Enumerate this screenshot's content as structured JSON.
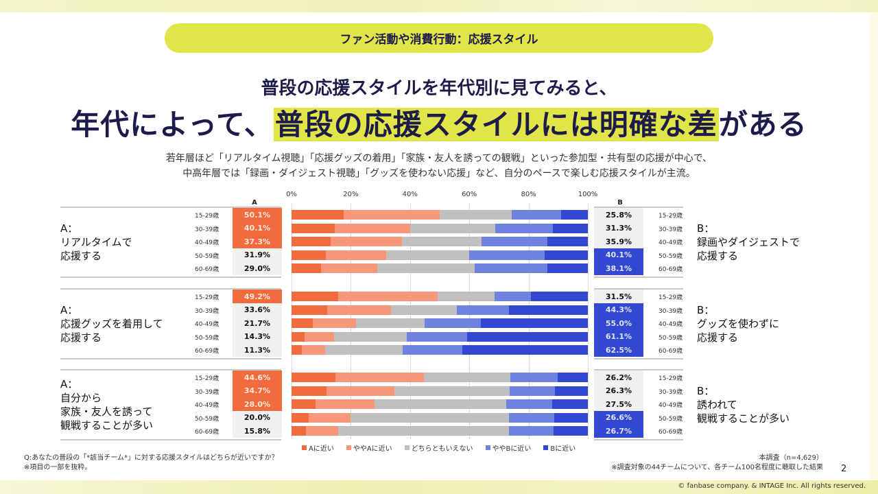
{
  "header": {
    "section_pill": "ファン活動や消費行動：応援スタイル",
    "subheading": "普段の応援スタイルを年代別に見てみると、",
    "heading_pre": "年代によって、",
    "heading_highlight": "普段の応援スタイルには明確な差",
    "heading_post": "がある",
    "description_line1": "若年層ほど「リアルタイム視聴」「応援グッズの着用」「家族・友人を誘っての観戦」といった参加型・共有型の応援が中心で、",
    "description_line2": "中高年層では「録画・ダイジェスト視聴」「グッズを使わない応援」など、自分のペースで楽しむ応援スタイルが主流。"
  },
  "colors": {
    "A_close": "#f26b3f",
    "somewhat_A": "#f7967a",
    "neutral": "#bfbfbf",
    "somewhat_B": "#6f82df",
    "B_close": "#3248d0",
    "highlight_yellow": "#e2e548",
    "heading_navy": "#1d1b4a",
    "cell_grey": "#f0f0f0"
  },
  "chart_data": {
    "type": "bar",
    "orientation": "horizontal-stacked-100",
    "xlim": [
      0,
      100
    ],
    "x_ticks": [
      "0%",
      "20%",
      "40%",
      "60%",
      "80%",
      "100%"
    ],
    "column_headers": {
      "A": "A",
      "B": "B"
    },
    "legend": [
      "Aに近い",
      "ややAに近い",
      "どちらともいえない",
      "ややBに近い",
      "Bに近い"
    ],
    "legend_position": "bottom",
    "age_groups": [
      "15-29歳",
      "30-39歳",
      "40-49歳",
      "50-59歳",
      "60-69歳"
    ],
    "groups": [
      {
        "label_A": [
          "A：",
          "リアルタイムで",
          "応援する"
        ],
        "label_B": [
          "B：",
          "録画やダイジェストで",
          "応援する"
        ],
        "rows": [
          {
            "age": "15-29歳",
            "A_total": "50.1%",
            "B_total": "25.8%",
            "A_hl": true,
            "B_hl": false,
            "segments": [
              17.7,
              32.4,
              24.1,
              16.8,
              9.0
            ]
          },
          {
            "age": "30-39歳",
            "A_total": "40.1%",
            "B_total": "31.3%",
            "A_hl": true,
            "B_hl": false,
            "segments": [
              14.5,
              25.6,
              28.6,
              19.6,
              11.7
            ]
          },
          {
            "age": "40-49歳",
            "A_total": "37.3%",
            "B_total": "35.9%",
            "A_hl": true,
            "B_hl": false,
            "segments": [
              13.1,
              24.2,
              26.8,
              22.2,
              13.7
            ]
          },
          {
            "age": "50-59歳",
            "A_total": "31.9%",
            "B_total": "40.1%",
            "A_hl": false,
            "B_hl": true,
            "segments": [
              11.6,
              20.3,
              28.0,
              25.5,
              14.6
            ]
          },
          {
            "age": "60-69歳",
            "A_total": "29.0%",
            "B_total": "38.1%",
            "A_hl": false,
            "B_hl": true,
            "segments": [
              9.9,
              19.1,
              32.9,
              24.4,
              13.7
            ]
          }
        ]
      },
      {
        "label_A": [
          "A：",
          "応援グッズを着用して",
          "応援する"
        ],
        "label_B": [
          "B：",
          "グッズを使わずに",
          "応援する"
        ],
        "rows": [
          {
            "age": "15-29歳",
            "A_total": "49.2%",
            "B_total": "31.5%",
            "A_hl": true,
            "B_hl": false,
            "segments": [
              15.7,
              33.5,
              19.3,
              12.3,
              19.2
            ]
          },
          {
            "age": "30-39歳",
            "A_total": "33.6%",
            "B_total": "44.3%",
            "A_hl": false,
            "B_hl": true,
            "segments": [
              12.0,
              21.6,
              22.1,
              17.7,
              26.6
            ]
          },
          {
            "age": "40-49歳",
            "A_total": "21.7%",
            "B_total": "55.0%",
            "A_hl": false,
            "B_hl": true,
            "segments": [
              7.1,
              14.6,
              23.3,
              18.8,
              36.2
            ]
          },
          {
            "age": "50-59歳",
            "A_total": "14.3%",
            "B_total": "61.1%",
            "A_hl": false,
            "B_hl": true,
            "segments": [
              4.3,
              10.0,
              24.6,
              20.4,
              40.7
            ]
          },
          {
            "age": "60-69歳",
            "A_total": "11.3%",
            "B_total": "62.5%",
            "A_hl": false,
            "B_hl": true,
            "segments": [
              3.5,
              7.8,
              26.2,
              20.1,
              42.4
            ]
          }
        ]
      },
      {
        "label_A": [
          "A：",
          "自分から",
          "家族・友人を誘って",
          "観戦することが多い"
        ],
        "label_B": [
          "B：",
          "誘われて",
          "観戦することが多い"
        ],
        "rows": [
          {
            "age": "15-29歳",
            "A_total": "44.6%",
            "B_total": "26.2%",
            "A_hl": true,
            "B_hl": false,
            "segments": [
              14.8,
              29.8,
              29.2,
              15.9,
              10.3
            ]
          },
          {
            "age": "30-39歳",
            "A_total": "34.7%",
            "B_total": "26.3%",
            "A_hl": true,
            "B_hl": false,
            "segments": [
              11.8,
              22.9,
              39.0,
              15.2,
              11.1
            ]
          },
          {
            "age": "40-49歳",
            "A_total": "28.0%",
            "B_total": "27.5%",
            "A_hl": true,
            "B_hl": false,
            "segments": [
              8.1,
              19.9,
              44.5,
              15.5,
              12.0
            ]
          },
          {
            "age": "50-59歳",
            "A_total": "20.0%",
            "B_total": "26.6%",
            "A_hl": false,
            "B_hl": true,
            "segments": [
              5.8,
              14.2,
              53.4,
              15.3,
              11.3
            ]
          },
          {
            "age": "60-69歳",
            "A_total": "15.8%",
            "B_total": "26.7%",
            "A_hl": false,
            "B_hl": true,
            "segments": [
              4.9,
              10.9,
              57.5,
              15.1,
              11.6
            ]
          }
        ]
      }
    ]
  },
  "footer": {
    "question": "Q:あなたの普段の「*該当チーム*」に対する応援スタイルはどちらが近いですか？",
    "note_left": "※項目の一部を抜粋。",
    "sample": "本調査（n=4,629）",
    "note_right": "※調査対象の44チームについて、各チーム100名程度に聴取した結果",
    "page_number": "2",
    "copyright": "© fanbase company. & INTAGE Inc.  All rights reserved."
  }
}
